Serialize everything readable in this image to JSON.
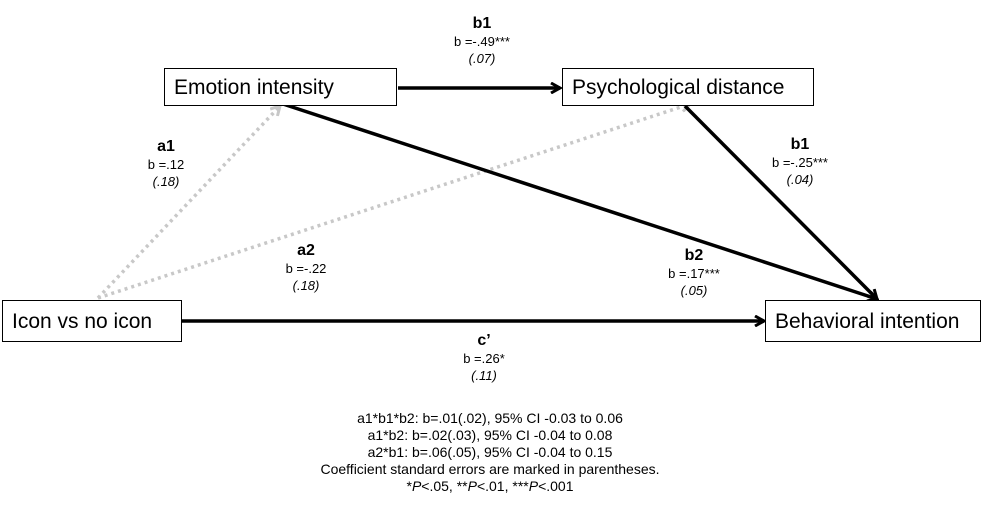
{
  "nodes": {
    "emotion": "Emotion intensity",
    "distance": "Psychological distance",
    "icon": "Icon vs no icon",
    "behavior": "Behavioral intention"
  },
  "paths": {
    "b1_top": {
      "name": "b1",
      "b": "b =-.49***",
      "se": "(.07)"
    },
    "b1_right": {
      "name": "b1",
      "b": "b =-.25***",
      "se": "(.04)"
    },
    "b2": {
      "name": "b2",
      "b": "b =.17***",
      "se": "(.05)"
    },
    "a1": {
      "name": "a1",
      "b": "b =.12",
      "se": "(.18)"
    },
    "a2": {
      "name": "a2",
      "b": "b =-.22",
      "se": "(.18)"
    },
    "c_prime": {
      "name": "c’",
      "b": "b =.26*",
      "se": "(.11)"
    }
  },
  "notes": [
    "a1*b1*b2: b=.01(.02), 95% CI -0.03 to 0.06",
    "a1*b2: b=.02(.03), 95% CI -0.04 to 0.08",
    "a2*b1: b=.06(.05), 95% CI -0.04 to 0.15",
    "Coefficient standard errors are marked in parentheses."
  ],
  "significance_note": "*P<.05, **P<.01, ***P<.001",
  "colors": {
    "solid_arrow": "#000000",
    "dotted_arrow": "#c8c8c8"
  }
}
